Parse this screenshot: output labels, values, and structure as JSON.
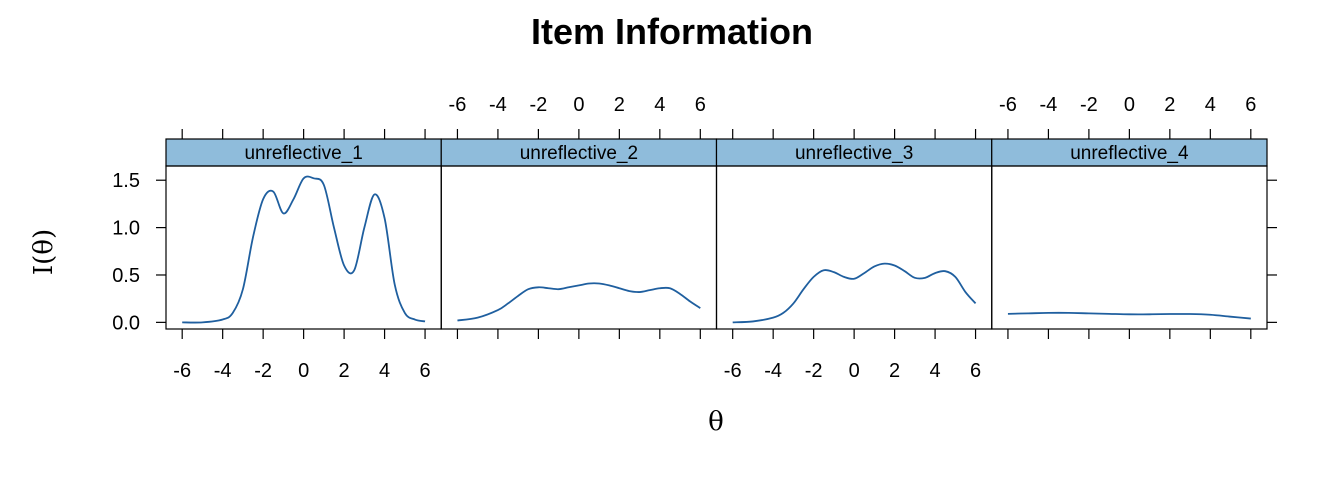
{
  "chart_data": {
    "type": "line",
    "title": "Item Information",
    "xlabel": "θ",
    "ylabel": "I(θ)",
    "xlim": [
      -6.8,
      6.8
    ],
    "ylim": [
      -0.07,
      1.65
    ],
    "x_ticks": [
      -6,
      -4,
      -2,
      0,
      2,
      4,
      6
    ],
    "y_ticks": [
      0.0,
      0.5,
      1.0,
      1.5
    ],
    "y_tick_labels": [
      "0.0",
      "0.5",
      "1.0",
      "1.5"
    ],
    "line_color": "#1f5f9f",
    "strip_color": "#8fbcdb",
    "grid": false,
    "panels": [
      {
        "name": "unreflective_1",
        "x": [
          -6,
          -5,
          -4,
          -3.5,
          -3,
          -2.5,
          -2,
          -1.5,
          -1,
          -0.5,
          0,
          0.5,
          1,
          1.5,
          2,
          2.5,
          3,
          3.5,
          4,
          4.5,
          5,
          5.5,
          6
        ],
        "y": [
          0.0,
          0.0,
          0.03,
          0.1,
          0.35,
          0.9,
          1.3,
          1.38,
          1.15,
          1.3,
          1.52,
          1.52,
          1.45,
          1.0,
          0.6,
          0.55,
          1.0,
          1.35,
          1.1,
          0.4,
          0.1,
          0.03,
          0.01
        ]
      },
      {
        "name": "unreflective_2",
        "x": [
          -6,
          -5,
          -4,
          -3.5,
          -3,
          -2.5,
          -2,
          -1.5,
          -1,
          -0.5,
          0,
          0.5,
          1,
          1.5,
          2,
          2.5,
          3,
          3.5,
          4,
          4.5,
          5,
          5.5,
          6
        ],
        "y": [
          0.02,
          0.05,
          0.13,
          0.2,
          0.28,
          0.35,
          0.37,
          0.36,
          0.35,
          0.37,
          0.39,
          0.41,
          0.41,
          0.39,
          0.36,
          0.33,
          0.32,
          0.34,
          0.36,
          0.36,
          0.3,
          0.22,
          0.15
        ]
      },
      {
        "name": "unreflective_3",
        "x": [
          -6,
          -5,
          -4,
          -3.5,
          -3,
          -2.5,
          -2,
          -1.5,
          -1,
          -0.5,
          0,
          0.5,
          1,
          1.5,
          2,
          2.5,
          3,
          3.5,
          4,
          4.5,
          5,
          5.5,
          6
        ],
        "y": [
          0.0,
          0.01,
          0.05,
          0.1,
          0.2,
          0.35,
          0.48,
          0.55,
          0.53,
          0.48,
          0.46,
          0.52,
          0.59,
          0.62,
          0.6,
          0.54,
          0.47,
          0.47,
          0.52,
          0.54,
          0.48,
          0.32,
          0.2
        ]
      },
      {
        "name": "unreflective_4",
        "x": [
          -6,
          -5,
          -4,
          -3,
          -2,
          -1,
          0,
          1,
          2,
          3,
          4,
          5,
          6
        ],
        "y": [
          0.09,
          0.095,
          0.1,
          0.1,
          0.095,
          0.09,
          0.085,
          0.085,
          0.088,
          0.088,
          0.08,
          0.06,
          0.04
        ]
      }
    ]
  }
}
